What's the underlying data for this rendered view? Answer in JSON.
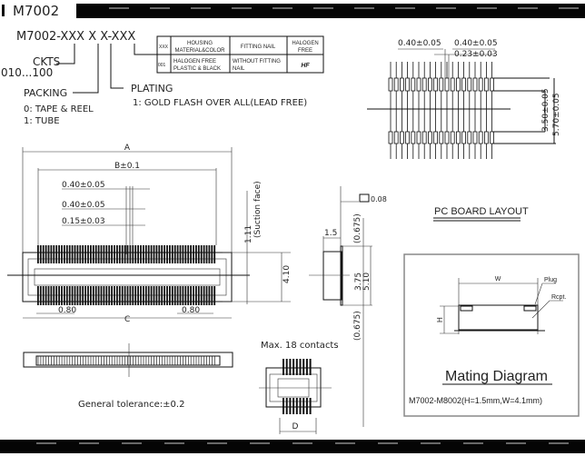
{
  "header": {
    "title": "M7002"
  },
  "part_number": {
    "code": "M7002-XXX X X-XXX",
    "ckts_label": "CKTS",
    "ckts_range": "010...100",
    "packing_label": "PACKING",
    "packing_options": [
      "0: TAPE & REEL",
      "1: TUBE"
    ],
    "plating_label": "PLATING",
    "plating_options": [
      "1: GOLD FLASH OVER ALL(LEAD FREE)"
    ]
  },
  "option_table": {
    "headers": [
      "XXX",
      "HOUSING MATERIAL&COLOR",
      "FITTING NAIL",
      "HALOGEN FREE"
    ],
    "header_lines": [
      [
        "XXX"
      ],
      [
        "HOUSING",
        "MATERIAL&COLOR"
      ],
      [
        "FITTING NAIL"
      ],
      [
        "HALOGEN",
        "FREE"
      ]
    ],
    "rows": [
      {
        "code": "001",
        "housing": [
          "HALOGEN FREE",
          "PLASTIC & BLACK"
        ],
        "nail": [
          "WITHOUT FITTING",
          "NAIL"
        ],
        "halogen_mark": "HF"
      }
    ]
  },
  "pad_layout": {
    "dims": [
      "0.40±0.05",
      "0.40±0.05",
      "0.23±0.03",
      "3.50±0.05",
      "5.70±0.05"
    ]
  },
  "front_view": {
    "dims": [
      "A",
      "B±0.1",
      "0.40±0.05",
      "0.40±0.05",
      "0.15±0.03",
      "1.11",
      "(Suction face)",
      "4.10",
      "0.80",
      "0.80",
      "C"
    ]
  },
  "side_view": {
    "flatness": "0.08",
    "dims": [
      "1.5",
      "(0.675)",
      "3.75",
      "5.10",
      "(0.675)"
    ]
  },
  "small_view": {
    "max_contacts": "Max. 18 contacts",
    "dim": "D"
  },
  "general_tolerance": "General tolerance:±0.2",
  "pc_board": {
    "title": "PC BOARD LAYOUT",
    "w_label": "W",
    "h_label": "H",
    "plug_label": "Plug",
    "rcpt_label": "Rcpt.",
    "mating_title": "Mating Diagram",
    "mating_spec": "M7002-M8002(H=1.5mm,W=4.1mm)"
  }
}
